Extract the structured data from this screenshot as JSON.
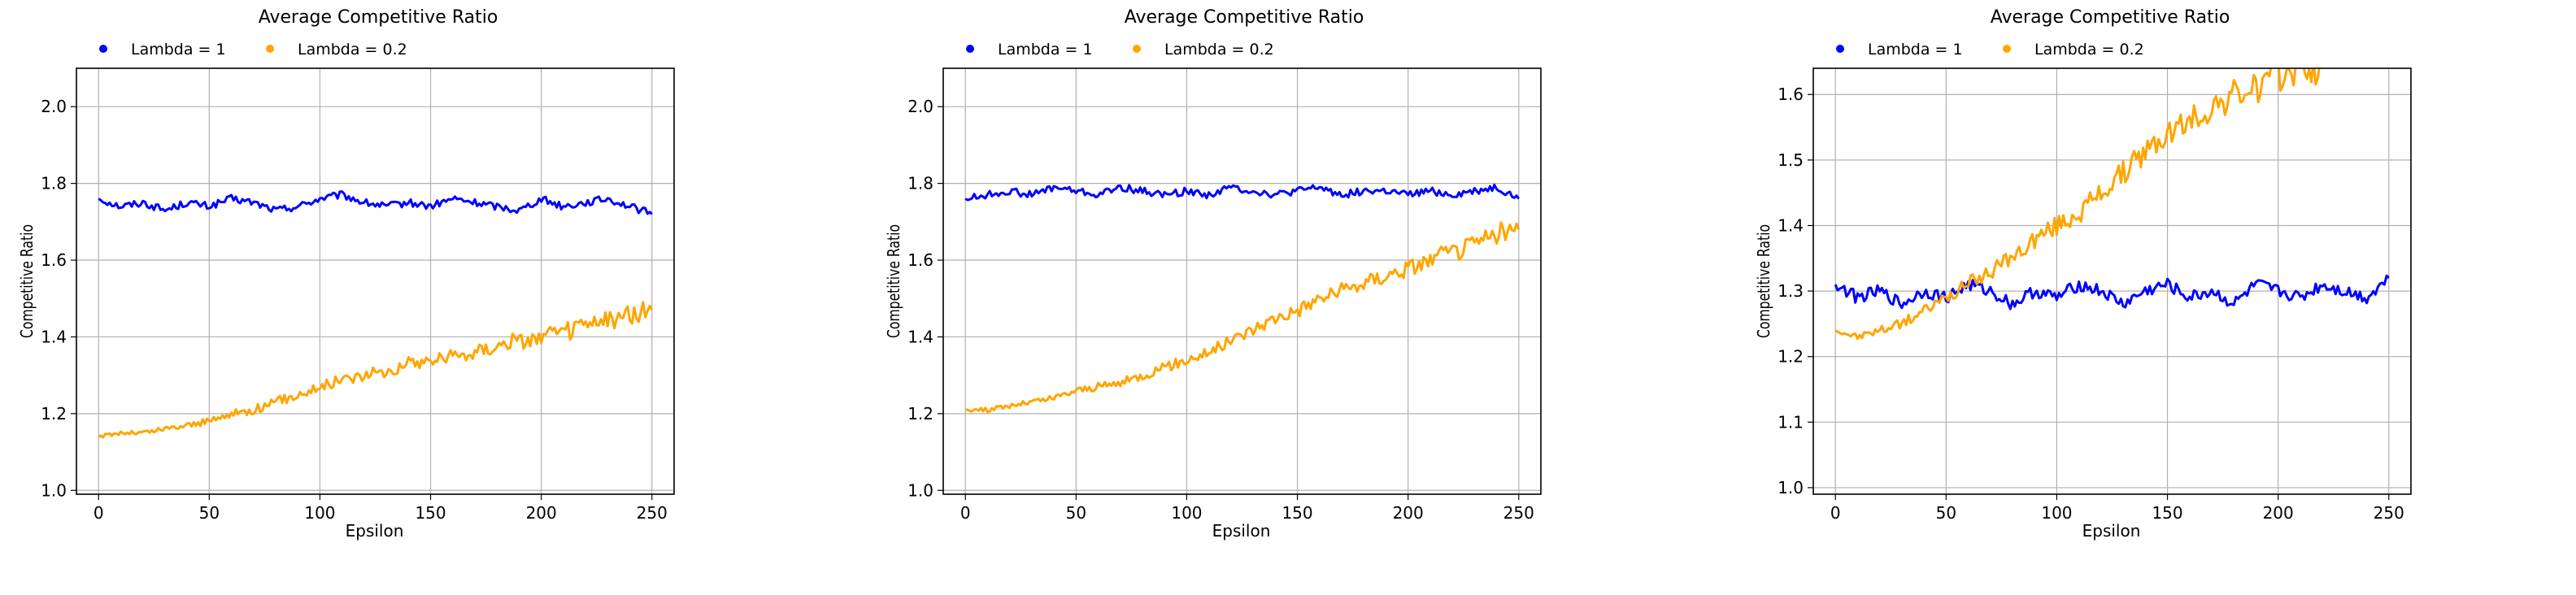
{
  "chart_data": [
    {
      "type": "line",
      "title": "Average Competitive Ratio",
      "xlabel": "Epsilon",
      "ylabel": "Competitive Ratio",
      "xlim": [
        -10,
        260
      ],
      "ylim": [
        0.99,
        2.1
      ],
      "xticks": [
        0,
        50,
        100,
        150,
        200,
        250
      ],
      "xtick_labels": [
        "0",
        "50",
        "100",
        "150",
        "200",
        "250"
      ],
      "yticks": [
        1.0,
        1.2,
        1.4,
        1.6,
        1.8,
        2.0
      ],
      "ytick_labels": [
        "1.0",
        "1.2",
        "1.4",
        "1.6",
        "1.8",
        "2.0"
      ],
      "grid": true,
      "legend": "top-left",
      "series": [
        {
          "name": "Lambda = 1",
          "color": "#0000ff",
          "x": [
            0,
            10,
            20,
            30,
            40,
            50,
            60,
            70,
            80,
            90,
            100,
            110,
            120,
            130,
            140,
            150,
            160,
            170,
            180,
            190,
            200,
            210,
            220,
            230,
            240,
            250
          ],
          "y": [
            1.76,
            1.74,
            1.75,
            1.73,
            1.75,
            1.74,
            1.76,
            1.75,
            1.73,
            1.74,
            1.76,
            1.77,
            1.75,
            1.74,
            1.75,
            1.74,
            1.76,
            1.75,
            1.74,
            1.73,
            1.76,
            1.74,
            1.75,
            1.76,
            1.74,
            1.72
          ]
        },
        {
          "name": "Lambda = 0.2",
          "color": "#ffa500",
          "x": [
            0,
            10,
            20,
            30,
            40,
            50,
            60,
            70,
            80,
            90,
            100,
            110,
            120,
            130,
            140,
            150,
            160,
            170,
            180,
            190,
            200,
            210,
            220,
            230,
            240,
            250
          ],
          "y": [
            1.14,
            1.15,
            1.15,
            1.16,
            1.17,
            1.18,
            1.2,
            1.21,
            1.23,
            1.25,
            1.27,
            1.29,
            1.3,
            1.31,
            1.33,
            1.34,
            1.35,
            1.36,
            1.38,
            1.39,
            1.4,
            1.41,
            1.43,
            1.44,
            1.46,
            1.47
          ]
        }
      ]
    },
    {
      "type": "line",
      "title": "Average Competitive Ratio",
      "xlabel": "Epsilon",
      "ylabel": "Competitive Ratio",
      "xlim": [
        -10,
        260
      ],
      "ylim": [
        0.99,
        2.1
      ],
      "xticks": [
        0,
        50,
        100,
        150,
        200,
        250
      ],
      "xtick_labels": [
        "0",
        "50",
        "100",
        "150",
        "200",
        "250"
      ],
      "yticks": [
        1.0,
        1.2,
        1.4,
        1.6,
        1.8,
        2.0
      ],
      "ytick_labels": [
        "1.0",
        "1.2",
        "1.4",
        "1.6",
        "1.8",
        "2.0"
      ],
      "grid": true,
      "legend": "top-left",
      "series": [
        {
          "name": "Lambda = 1",
          "color": "#0000ff",
          "x": [
            0,
            10,
            20,
            30,
            40,
            50,
            60,
            70,
            80,
            90,
            100,
            110,
            120,
            130,
            140,
            150,
            160,
            170,
            180,
            190,
            200,
            210,
            220,
            230,
            240,
            250
          ],
          "y": [
            1.76,
            1.77,
            1.78,
            1.77,
            1.79,
            1.78,
            1.77,
            1.79,
            1.78,
            1.77,
            1.78,
            1.77,
            1.79,
            1.78,
            1.77,
            1.78,
            1.79,
            1.77,
            1.78,
            1.78,
            1.77,
            1.78,
            1.77,
            1.78,
            1.79,
            1.76
          ]
        },
        {
          "name": "Lambda = 0.2",
          "color": "#ffa500",
          "x": [
            0,
            10,
            20,
            30,
            40,
            50,
            60,
            70,
            80,
            90,
            100,
            110,
            120,
            130,
            140,
            150,
            160,
            170,
            180,
            190,
            200,
            210,
            220,
            230,
            240,
            250
          ],
          "y": [
            1.21,
            1.21,
            1.22,
            1.23,
            1.24,
            1.26,
            1.27,
            1.28,
            1.3,
            1.32,
            1.34,
            1.36,
            1.39,
            1.42,
            1.45,
            1.47,
            1.5,
            1.52,
            1.54,
            1.56,
            1.58,
            1.6,
            1.62,
            1.64,
            1.67,
            1.68
          ]
        }
      ]
    },
    {
      "type": "line",
      "title": "Average Competitive Ratio",
      "xlabel": "Epsilon",
      "ylabel": "Competitive Ratio",
      "xlim": [
        -10,
        260
      ],
      "ylim": [
        0.99,
        1.64
      ],
      "xticks": [
        0,
        50,
        100,
        150,
        200,
        250
      ],
      "xtick_labels": [
        "0",
        "50",
        "100",
        "150",
        "200",
        "250"
      ],
      "yticks": [
        1.0,
        1.1,
        1.2,
        1.3,
        1.4,
        1.5,
        1.6
      ],
      "ytick_labels": [
        "1.0",
        "1.1",
        "1.2",
        "1.3",
        "1.4",
        "1.5",
        "1.6"
      ],
      "grid": true,
      "legend": "top-left",
      "series": [
        {
          "name": "Lambda = 1",
          "color": "#0000ff",
          "x": [
            0,
            10,
            20,
            30,
            40,
            50,
            60,
            70,
            80,
            90,
            100,
            110,
            120,
            130,
            140,
            150,
            160,
            170,
            180,
            190,
            200,
            210,
            220,
            230,
            240,
            250
          ],
          "y": [
            1.31,
            1.29,
            1.3,
            1.28,
            1.3,
            1.29,
            1.31,
            1.3,
            1.28,
            1.3,
            1.29,
            1.31,
            1.3,
            1.28,
            1.3,
            1.31,
            1.29,
            1.3,
            1.28,
            1.31,
            1.3,
            1.29,
            1.31,
            1.3,
            1.29,
            1.32
          ]
        },
        {
          "name": "Lambda = 0.2",
          "color": "#ffa500",
          "x": [
            0,
            10,
            20,
            30,
            40,
            50,
            60,
            70,
            80,
            90,
            100,
            110,
            120,
            130,
            140,
            150,
            160,
            170,
            180,
            190,
            200,
            210,
            220
          ],
          "y": [
            1.24,
            1.23,
            1.24,
            1.25,
            1.27,
            1.29,
            1.31,
            1.33,
            1.35,
            1.38,
            1.4,
            1.42,
            1.45,
            1.48,
            1.51,
            1.54,
            1.56,
            1.58,
            1.6,
            1.61,
            1.63,
            1.64,
            1.64
          ]
        }
      ]
    }
  ]
}
